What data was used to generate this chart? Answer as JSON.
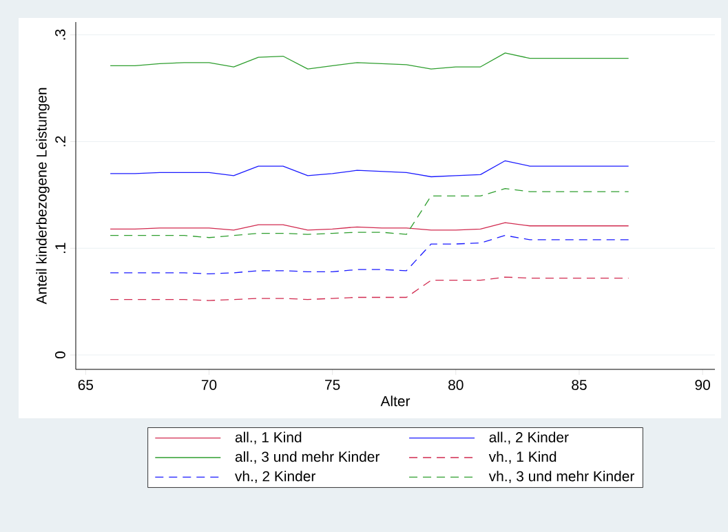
{
  "chart_data": {
    "type": "line",
    "xlabel": "Alter",
    "ylabel": "Anteil kinderbezogene Leistungen",
    "x": [
      66,
      67,
      68,
      69,
      70,
      71,
      72,
      73,
      74,
      75,
      76,
      77,
      78,
      79,
      80,
      81,
      82,
      83,
      84,
      85,
      86,
      87
    ],
    "xlim": [
      64.6,
      90.5
    ],
    "xticks": [
      65,
      70,
      75,
      80,
      85,
      90
    ],
    "ylim": [
      -0.0135,
      0.312
    ],
    "yticks": [
      0,
      {
        "value": 0.1,
        "label": ".1"
      },
      {
        "value": 0.2,
        "label": ".2"
      },
      {
        "value": 0.3,
        "label": ".3"
      }
    ],
    "grid": "y",
    "legend": "bottom",
    "marker": "none",
    "series": [
      {
        "name": "all., 1 Kind",
        "color": "#d12a4f",
        "line_style": "solid",
        "values": [
          0.118,
          0.118,
          0.119,
          0.119,
          0.119,
          0.117,
          0.122,
          0.122,
          0.117,
          0.118,
          0.12,
          0.119,
          0.119,
          0.117,
          0.117,
          0.118,
          0.124,
          0.121,
          0.121,
          0.121,
          0.121,
          0.121
        ]
      },
      {
        "name": "all., 2 Kinder",
        "color": "#1a1aff",
        "line_style": "solid",
        "values": [
          0.17,
          0.17,
          0.171,
          0.171,
          0.171,
          0.168,
          0.177,
          0.177,
          0.168,
          0.17,
          0.173,
          0.172,
          0.171,
          0.167,
          0.168,
          0.169,
          0.182,
          0.177,
          0.177,
          0.177,
          0.177,
          0.177
        ]
      },
      {
        "name": "all., 3 und mehr Kinder",
        "color": "#2e9e2e",
        "line_style": "solid",
        "values": [
          0.271,
          0.271,
          0.273,
          0.274,
          0.274,
          0.27,
          0.279,
          0.28,
          0.268,
          0.271,
          0.274,
          0.273,
          0.272,
          0.268,
          0.27,
          0.27,
          0.283,
          0.278,
          0.278,
          0.278,
          0.278,
          0.278
        ]
      },
      {
        "name": "vh., 1 Kind",
        "color": "#d12a4f",
        "line_style": "dashed",
        "values": [
          0.052,
          0.052,
          0.052,
          0.052,
          0.051,
          0.052,
          0.053,
          0.053,
          0.052,
          0.053,
          0.054,
          0.054,
          0.054,
          0.07,
          0.07,
          0.07,
          0.073,
          0.072,
          0.072,
          0.072,
          0.072,
          0.072
        ]
      },
      {
        "name": "vh., 2 Kinder",
        "color": "#1a1aff",
        "line_style": "dashed",
        "values": [
          0.077,
          0.077,
          0.077,
          0.077,
          0.076,
          0.077,
          0.079,
          0.079,
          0.078,
          0.078,
          0.08,
          0.08,
          0.079,
          0.104,
          0.104,
          0.105,
          0.112,
          0.108,
          0.108,
          0.108,
          0.108,
          0.108
        ]
      },
      {
        "name": "vh., 3 und mehr Kinder",
        "color": "#2e9e2e",
        "line_style": "dashed",
        "values": [
          0.112,
          0.112,
          0.112,
          0.112,
          0.11,
          0.112,
          0.114,
          0.114,
          0.113,
          0.114,
          0.115,
          0.115,
          0.113,
          0.149,
          0.149,
          0.149,
          0.156,
          0.153,
          0.153,
          0.153,
          0.153,
          0.153
        ]
      }
    ]
  }
}
